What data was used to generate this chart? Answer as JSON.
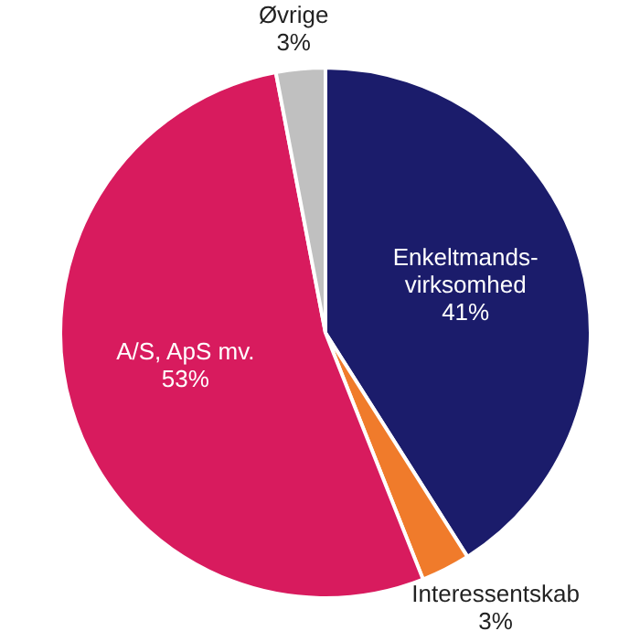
{
  "chart_data": {
    "type": "pie",
    "categories": [
      "Enkeltmands-virksomhed",
      "Interessentskab",
      "A/S, ApS mv.",
      "Øvrige"
    ],
    "values": [
      41,
      3,
      53,
      3
    ],
    "colors": [
      "#1b1c6b",
      "#f07b2b",
      "#d81b5e",
      "#c0c0c0"
    ],
    "value_labels": [
      "41%",
      "3%",
      "53%",
      "3%"
    ]
  }
}
